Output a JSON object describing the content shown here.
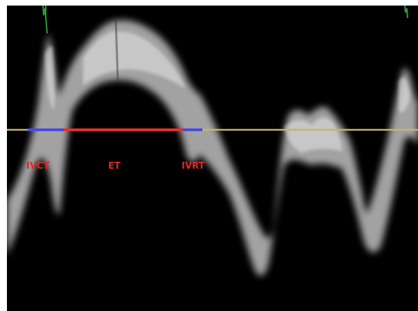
{
  "labels": {
    "ivct": "IVCT",
    "et": "ET",
    "ivrt": "IVRT"
  },
  "colors": {
    "background": "#000000",
    "signal": "#bfbfbf",
    "baseline": "#c8b36a",
    "ivct_segment": "#4a4ae0",
    "et_segment": "#e03030",
    "ivrt_segment": "#4a4ae0",
    "label_text": "#e02828",
    "ecg_marker": "#2f9a3f"
  },
  "icons": {
    "ecg_marker_left": "ecg-marker-icon",
    "ecg_marker_right": "ecg-marker-icon"
  }
}
